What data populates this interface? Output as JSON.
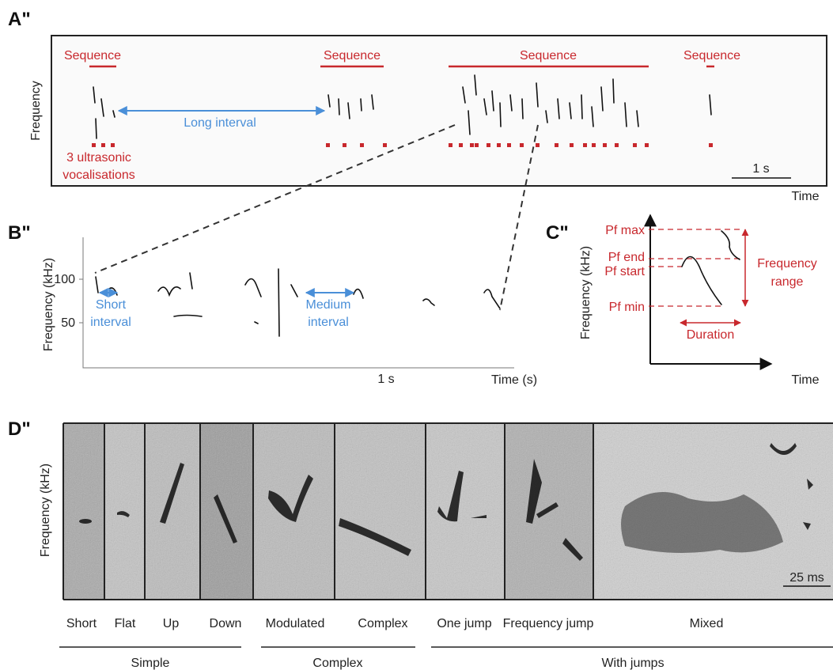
{
  "panels": {
    "a": {
      "label": "A\"",
      "y_axis": "Frequency",
      "x_axis": "Time",
      "sequences": [
        "Sequence",
        "Sequence",
        "Sequence",
        "Sequence"
      ],
      "interval": "Long interval",
      "vocalisations": [
        "3 ultrasonic",
        "vocalisations"
      ],
      "scale": "1 s"
    },
    "b": {
      "label": "B\"",
      "y_axis": "Frequency (kHz)",
      "x_axis": "Time (s)",
      "yticks": [
        "100",
        "50"
      ],
      "scale": "1 s",
      "short": [
        "Short",
        "interval"
      ],
      "medium": [
        "Medium",
        "interval"
      ]
    },
    "c": {
      "label": "C\"",
      "y_axis": "Frequency (kHz)",
      "x_axis": "Time",
      "params": [
        "Pf max",
        "Pf end",
        "Pf start",
        "Pf min"
      ],
      "range": [
        "Frequency",
        "range"
      ],
      "duration": "Duration"
    },
    "d": {
      "label": "D\"",
      "y_axis": "Frequency (kHz)",
      "scale": "25 ms",
      "types": [
        "Short",
        "Flat",
        "Up",
        "Down",
        "Modulated",
        "Complex",
        "One jump",
        "Frequency jump",
        "Mixed"
      ],
      "groups": [
        "Simple",
        "Complex",
        "With jumps"
      ]
    }
  }
}
